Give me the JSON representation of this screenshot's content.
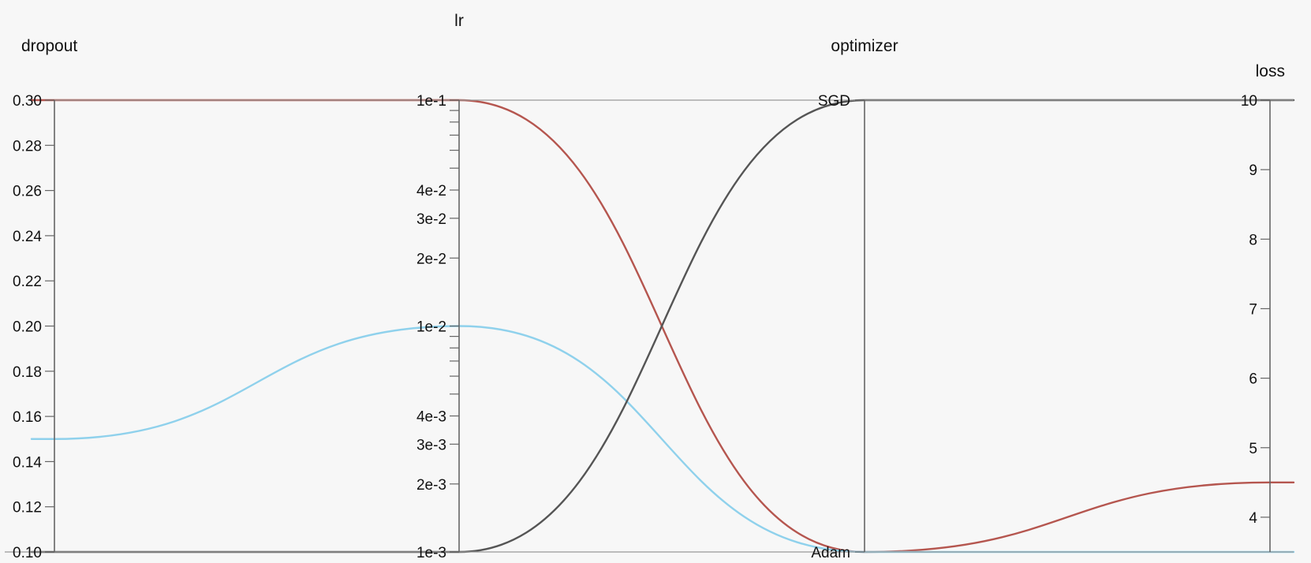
{
  "chart_data": {
    "type": "parallel_coordinates",
    "title": "",
    "axes": [
      {
        "name": "dropout",
        "scale": "linear",
        "range": [
          0.1,
          0.3
        ],
        "ticks": [
          0.1,
          0.12,
          0.14,
          0.16,
          0.18,
          0.2,
          0.22,
          0.24,
          0.26,
          0.28,
          0.3
        ],
        "tick_labels": [
          "0.10",
          "0.12",
          "0.14",
          "0.16",
          "0.18",
          "0.20",
          "0.22",
          "0.24",
          "0.26",
          "0.28",
          "0.30"
        ]
      },
      {
        "name": "lr",
        "scale": "log",
        "range": [
          0.001,
          0.1
        ],
        "ticks": [
          0.001,
          0.002,
          0.003,
          0.004,
          0.01,
          0.02,
          0.03,
          0.04,
          0.1
        ],
        "tick_labels": [
          "1e-3",
          "2e-3",
          "3e-3",
          "4e-3",
          "1e-2",
          "2e-2",
          "3e-2",
          "4e-2",
          "1e-1"
        ],
        "minor_ticks": [
          0.005,
          0.006,
          0.007,
          0.008,
          0.009,
          0.05,
          0.06,
          0.07,
          0.08,
          0.09
        ]
      },
      {
        "name": "optimizer",
        "scale": "categorical",
        "categories": [
          "Adam",
          "SGD"
        ],
        "tick_labels": [
          "Adam",
          "SGD"
        ]
      },
      {
        "name": "loss",
        "scale": "linear",
        "range": [
          3.5,
          10
        ],
        "ticks": [
          4,
          5,
          6,
          7,
          8,
          9,
          10
        ],
        "tick_labels": [
          "4",
          "5",
          "6",
          "7",
          "8",
          "9",
          "10"
        ]
      }
    ],
    "series": [
      {
        "color": "#b5564f",
        "values": {
          "dropout": 0.3,
          "lr": 0.1,
          "optimizer": "Adam",
          "loss": 4.5
        }
      },
      {
        "color": "#8fd1ec",
        "values": {
          "dropout": 0.15,
          "lr": 0.01,
          "optimizer": "Adam",
          "loss": 3.5
        }
      },
      {
        "color": "#555555",
        "values": {
          "dropout": 0.1,
          "lr": 0.001,
          "optimizer": "SGD",
          "loss": 10
        }
      }
    ],
    "grid": false,
    "legend": "none"
  }
}
